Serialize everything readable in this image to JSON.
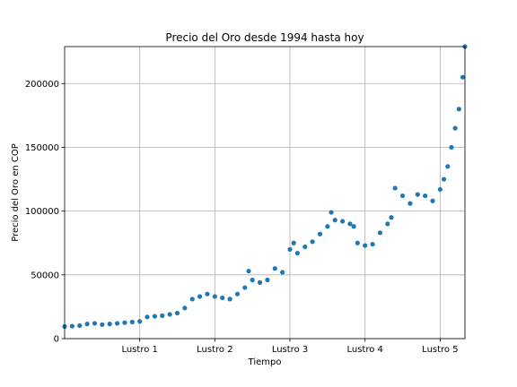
{
  "chart_data": {
    "type": "scatter",
    "title": "Precio del Oro desde 1994 hasta hoy",
    "xlabel": "Tiempo",
    "ylabel": "Precio del Oro en COP",
    "grid": true,
    "marker_color": "#1f77b4",
    "xlim": [
      0,
      5.33
    ],
    "ylim": [
      0,
      229000
    ],
    "xticks": [
      {
        "value": 1,
        "label": "Lustro 1"
      },
      {
        "value": 2,
        "label": "Lustro 2"
      },
      {
        "value": 3,
        "label": "Lustro 3"
      },
      {
        "value": 4,
        "label": "Lustro 4"
      },
      {
        "value": 5,
        "label": "Lustro 5"
      }
    ],
    "yticks": [
      {
        "value": 0,
        "label": "0"
      },
      {
        "value": 50000,
        "label": "50000"
      },
      {
        "value": 100000,
        "label": "100000"
      },
      {
        "value": 150000,
        "label": "150000"
      },
      {
        "value": 200000,
        "label": "200000"
      }
    ],
    "series": [
      {
        "x": [
          0,
          0.1,
          0.2,
          0.3,
          0.4,
          0.5,
          0.6,
          0.7,
          0.8,
          0.9,
          1.0,
          1.1,
          1.2,
          1.3,
          1.4,
          1.5,
          1.6,
          1.7,
          1.8,
          1.9,
          2.0,
          2.1,
          2.2,
          2.3,
          2.4,
          2.45,
          2.5,
          2.6,
          2.7,
          2.8,
          2.9,
          3.0,
          3.05,
          3.1,
          3.2,
          3.3,
          3.4,
          3.5,
          3.55,
          3.6,
          3.7,
          3.8,
          3.85,
          3.9,
          4.0,
          4.1,
          4.2,
          4.3,
          4.35,
          4.4,
          4.5,
          4.6,
          4.7,
          4.8,
          4.9,
          5.0,
          5.05,
          5.1,
          5.15,
          5.2,
          5.25,
          5.3,
          5.33
        ],
        "y": [
          9500,
          9800,
          10200,
          11500,
          12000,
          11000,
          11500,
          12000,
          12500,
          13000,
          13500,
          17000,
          17500,
          18000,
          19000,
          20000,
          24000,
          31000,
          33000,
          35000,
          33000,
          32000,
          31000,
          35000,
          40000,
          53000,
          46000,
          44000,
          46000,
          55000,
          52000,
          70000,
          75000,
          67000,
          72000,
          76000,
          82000,
          88000,
          99000,
          93000,
          92000,
          90000,
          88000,
          75000,
          73000,
          74000,
          83000,
          90000,
          95000,
          118000,
          112000,
          106000,
          113000,
          112000,
          108000,
          117000,
          125000,
          135000,
          150000,
          165000,
          180000,
          205000,
          229000
        ]
      }
    ]
  }
}
